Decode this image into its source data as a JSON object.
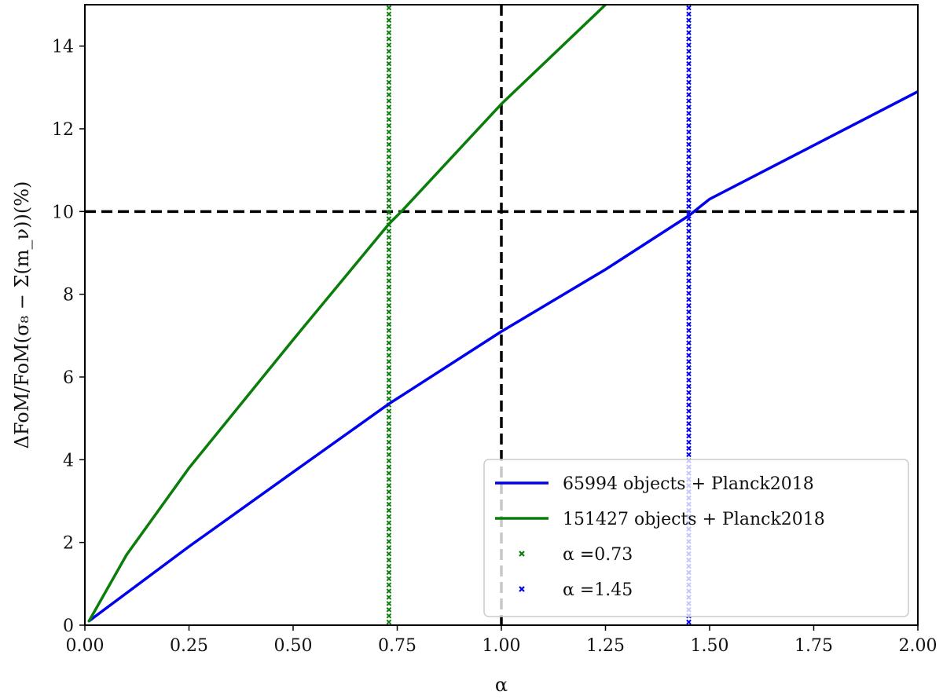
{
  "chart_data": {
    "type": "line",
    "xlabel": "α",
    "ylabel": "ΔFoM/FoM(σ₈ − Σ(m_ν))(%)",
    "xlim": [
      0.0,
      2.0
    ],
    "ylim": [
      0,
      15
    ],
    "x_ticks": [
      "0.00",
      "0.25",
      "0.50",
      "0.75",
      "1.00",
      "1.25",
      "1.50",
      "1.75",
      "2.00"
    ],
    "y_ticks": [
      "0",
      "2",
      "4",
      "6",
      "8",
      "10",
      "12",
      "14"
    ],
    "grid": false,
    "legend_position": "bottom-right",
    "series": [
      {
        "name": "65994 objects + Planck2018",
        "color": "#0000ee",
        "x": [
          0.01,
          0.25,
          0.5,
          0.73,
          1.0,
          1.25,
          1.45,
          1.5,
          1.75,
          2.0
        ],
        "values": [
          0.1,
          1.9,
          3.7,
          5.35,
          7.1,
          8.6,
          9.9,
          10.3,
          11.6,
          12.9
        ]
      },
      {
        "name": "151427 objects + Planck2018",
        "color": "#0a7d0a",
        "x": [
          0.01,
          0.1,
          0.25,
          0.5,
          0.73,
          0.76,
          1.0,
          1.25
        ],
        "values": [
          0.1,
          1.7,
          3.8,
          6.9,
          9.7,
          10.0,
          12.6,
          15.0
        ]
      }
    ],
    "reference_lines": [
      {
        "orientation": "vertical",
        "value": 1.0,
        "style": "dashed",
        "color": "#000000"
      },
      {
        "orientation": "horizontal",
        "value": 10,
        "style": "dashed",
        "color": "#000000"
      },
      {
        "orientation": "vertical",
        "value": 0.73,
        "style": "x-markers",
        "color": "#0a7d0a",
        "name": "α =0.73"
      },
      {
        "orientation": "vertical",
        "value": 1.45,
        "style": "x-markers",
        "color": "#0000ee",
        "name": "α =1.45"
      }
    ],
    "legend": [
      "65994 objects + Planck2018",
      "151427 objects + Planck2018",
      "α =0.73",
      "α =1.45"
    ]
  }
}
